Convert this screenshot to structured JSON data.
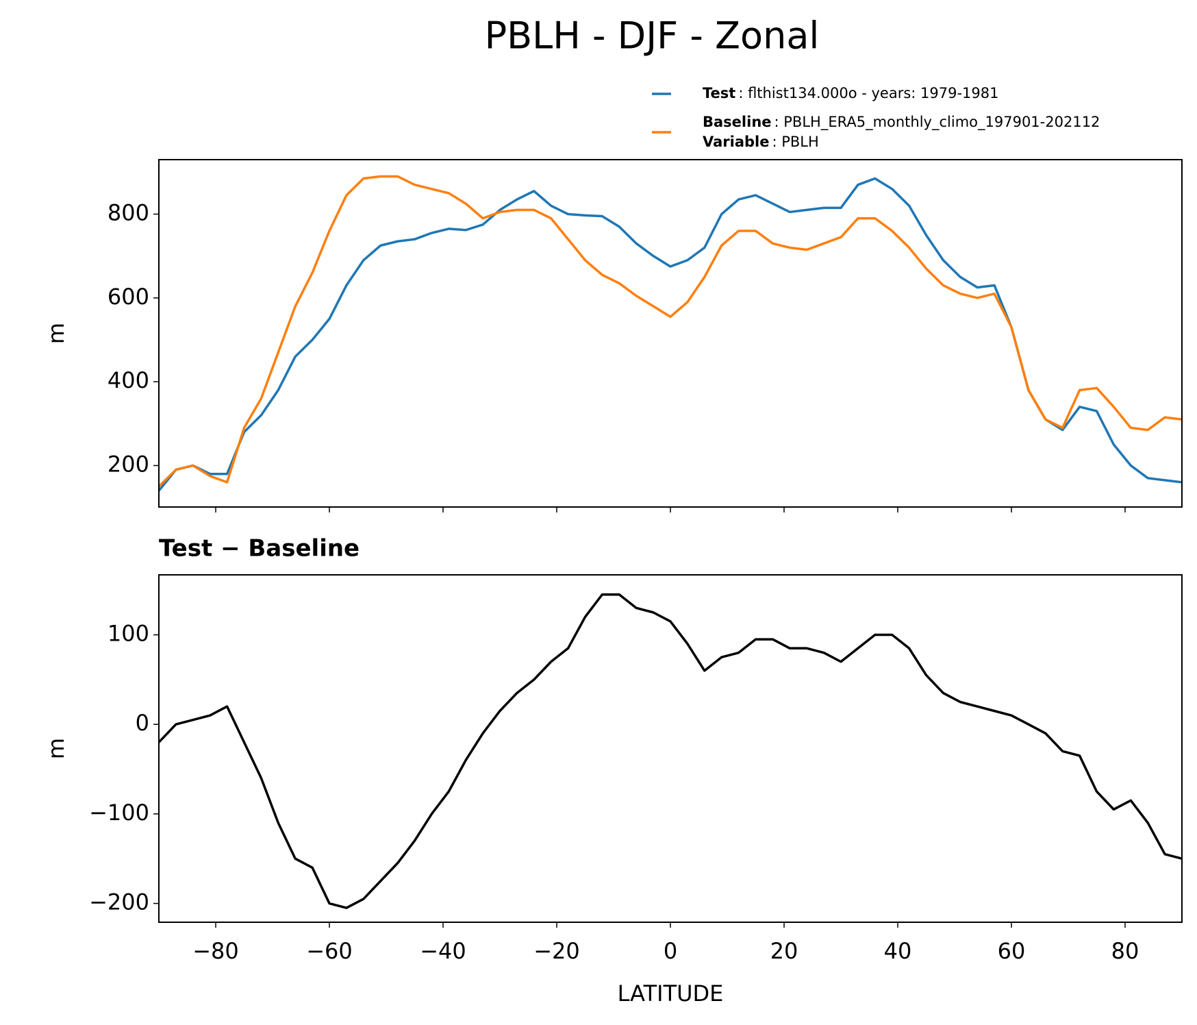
{
  "chart_data": [
    {
      "type": "line",
      "title": "PBLH - DJF - Zonal",
      "ylabel": "m",
      "x": [
        -90,
        -87,
        -84,
        -81,
        -78,
        -75,
        -72,
        -69,
        -66,
        -63,
        -60,
        -57,
        -54,
        -51,
        -48,
        -45,
        -42,
        -39,
        -36,
        -33,
        -30,
        -27,
        -24,
        -21,
        -18,
        -15,
        -12,
        -9,
        -6,
        -3,
        0,
        3,
        6,
        9,
        12,
        15,
        18,
        21,
        24,
        27,
        30,
        33,
        36,
        39,
        42,
        45,
        48,
        51,
        54,
        57,
        60,
        63,
        66,
        69,
        72,
        75,
        78,
        81,
        84,
        87,
        90
      ],
      "series": [
        {
          "name": "Test",
          "legend_detail": ": flthist134.000o - years: 1979-1981",
          "color": "#1f77b4",
          "values": [
            140,
            190,
            200,
            180,
            180,
            280,
            320,
            380,
            460,
            500,
            550,
            630,
            690,
            725,
            735,
            740,
            755,
            765,
            762,
            775,
            810,
            835,
            855,
            820,
            800,
            797,
            795,
            770,
            730,
            700,
            675,
            690,
            720,
            800,
            835,
            845,
            825,
            805,
            810,
            815,
            815,
            870,
            885,
            860,
            820,
            750,
            690,
            650,
            625,
            630,
            530,
            380,
            310,
            285,
            340,
            330,
            250,
            200,
            170,
            165,
            160
          ]
        },
        {
          "name": "Baseline",
          "legend_detail": ": PBLH_ERA5_monthly_climo_197901-202112",
          "color": "#ff7f0e",
          "values": [
            150,
            190,
            200,
            175,
            160,
            290,
            360,
            470,
            580,
            660,
            760,
            845,
            885,
            890,
            890,
            870,
            860,
            850,
            825,
            790,
            805,
            810,
            810,
            790,
            740,
            690,
            655,
            635,
            605,
            580,
            555,
            590,
            650,
            725,
            760,
            760,
            730,
            720,
            715,
            730,
            745,
            790,
            790,
            760,
            720,
            670,
            630,
            610,
            600,
            610,
            530,
            380,
            310,
            290,
            380,
            385,
            340,
            290,
            285,
            315,
            310
          ]
        }
      ],
      "legend_extra": {
        "name": "Variable",
        "detail": ": PBLH"
      },
      "xlim": [
        -90,
        90
      ],
      "xticks": [
        -80,
        -60,
        -40,
        -20,
        0,
        20,
        40,
        60,
        80
      ],
      "ylim": [
        101,
        930
      ],
      "yticks": [
        200,
        400,
        600,
        800
      ]
    },
    {
      "type": "line",
      "title": "Test − Baseline",
      "ylabel": "m",
      "xlabel": "LATITUDE",
      "x": [
        -90,
        -87,
        -84,
        -81,
        -78,
        -75,
        -72,
        -69,
        -66,
        -63,
        -60,
        -57,
        -54,
        -51,
        -48,
        -45,
        -42,
        -39,
        -36,
        -33,
        -30,
        -27,
        -24,
        -21,
        -18,
        -15,
        -12,
        -9,
        -6,
        -3,
        0,
        3,
        6,
        9,
        12,
        15,
        18,
        21,
        24,
        27,
        30,
        33,
        36,
        39,
        42,
        45,
        48,
        51,
        54,
        57,
        60,
        63,
        66,
        69,
        72,
        75,
        78,
        81,
        84,
        87,
        90
      ],
      "series": [
        {
          "color": "#000000",
          "values": [
            -20,
            0,
            5,
            10,
            20,
            -20,
            -60,
            -110,
            -150,
            -160,
            -200,
            -205,
            -195,
            -175,
            -155,
            -130,
            -100,
            -75,
            -40,
            -10,
            15,
            35,
            50,
            70,
            85,
            120,
            145,
            145,
            130,
            125,
            115,
            90,
            60,
            75,
            80,
            95,
            95,
            85,
            85,
            80,
            70,
            85,
            100,
            100,
            85,
            55,
            35,
            25,
            20,
            15,
            10,
            0,
            -10,
            -30,
            -35,
            -75,
            -95,
            -85,
            -110,
            -145,
            -150
          ]
        }
      ],
      "xlim": [
        -90,
        90
      ],
      "xticks": [
        {
          "value": -80,
          "label": "−80"
        },
        {
          "value": -60,
          "label": "−60"
        },
        {
          "value": -40,
          "label": "−40"
        },
        {
          "value": -20,
          "label": "−20"
        },
        0,
        20,
        40,
        60,
        80
      ],
      "ylim": [
        -221,
        167
      ],
      "yticks": [
        {
          "value": -200,
          "label": "−200"
        },
        {
          "value": -100,
          "label": "−100"
        },
        0,
        100
      ]
    }
  ]
}
